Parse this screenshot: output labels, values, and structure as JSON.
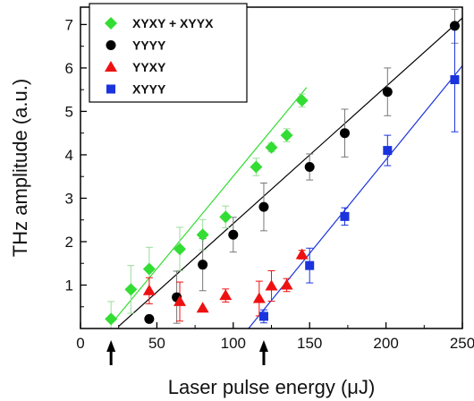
{
  "chart_data": {
    "type": "scatter",
    "title": "",
    "xlabel": "Laser pulse energy (μJ)",
    "ylabel": "THz amplitude (a.u.)",
    "xlim": [
      0,
      250
    ],
    "ylim": [
      0,
      7.4
    ],
    "xticks": [
      0,
      50,
      100,
      150,
      200,
      250
    ],
    "yticks": [
      1,
      2,
      3,
      4,
      5,
      6,
      7
    ],
    "grid": false,
    "legend_position": "top-left",
    "threshold_arrows_x": [
      20,
      120
    ],
    "series": [
      {
        "name": "XYXY + XYYX",
        "marker": "diamond",
        "color": "#33dd33",
        "points": [
          {
            "x": 20,
            "y": 0.22,
            "err": 0.4
          },
          {
            "x": 33,
            "y": 0.9,
            "err": 0.55
          },
          {
            "x": 45,
            "y": 1.37,
            "err": 0.5
          },
          {
            "x": 65,
            "y": 1.83,
            "err": 0.5
          },
          {
            "x": 80,
            "y": 2.16,
            "err": 0.35
          },
          {
            "x": 95,
            "y": 2.57,
            "err": 0.25
          },
          {
            "x": 115,
            "y": 3.72,
            "err": 0.2
          },
          {
            "x": 125,
            "y": 4.17,
            "err": 0.1
          },
          {
            "x": 135,
            "y": 4.45,
            "err": 0.15
          },
          {
            "x": 145,
            "y": 5.25,
            "err": 0.15
          }
        ],
        "fit": {
          "x": [
            20,
            148
          ],
          "y": [
            0.1,
            5.55
          ]
        }
      },
      {
        "name": "YYYY",
        "marker": "circle",
        "color": "#000000",
        "points": [
          {
            "x": 45,
            "y": 0.22,
            "err": 0
          },
          {
            "x": 63,
            "y": 0.72,
            "err": 0.6
          },
          {
            "x": 80,
            "y": 1.47,
            "err": 0.6
          },
          {
            "x": 100,
            "y": 2.16,
            "err": 0.4
          },
          {
            "x": 120,
            "y": 2.8,
            "err": 0.55
          },
          {
            "x": 150,
            "y": 3.72,
            "err": 0.3
          },
          {
            "x": 173,
            "y": 4.5,
            "err": 0.55
          },
          {
            "x": 201,
            "y": 5.45,
            "err": 0.55
          },
          {
            "x": 245,
            "y": 6.97,
            "err": 0.4
          }
        ],
        "fit": {
          "x": [
            25,
            250
          ],
          "y": [
            0.05,
            7.15
          ]
        }
      },
      {
        "name": "YYXY",
        "marker": "triangle",
        "color": "#ee1111",
        "points": [
          {
            "x": 45,
            "y": 0.87,
            "err": 0.3
          },
          {
            "x": 65,
            "y": 0.62,
            "err": 0.45
          },
          {
            "x": 80,
            "y": 0.47,
            "err": 0
          },
          {
            "x": 95,
            "y": 0.76,
            "err": 0.15
          },
          {
            "x": 117,
            "y": 0.69,
            "err": 0.4
          },
          {
            "x": 125,
            "y": 0.98,
            "err": 0.35
          },
          {
            "x": 135,
            "y": 1.0,
            "err": 0.15
          },
          {
            "x": 145,
            "y": 1.7,
            "err": 0.1
          }
        ],
        "fit": null
      },
      {
        "name": "XYYY",
        "marker": "square",
        "color": "#1a33dd",
        "points": [
          {
            "x": 120,
            "y": 0.28,
            "err": 0.15
          },
          {
            "x": 150,
            "y": 1.45,
            "err": 0.4
          },
          {
            "x": 173,
            "y": 2.58,
            "err": 0.2
          },
          {
            "x": 201,
            "y": 4.1,
            "err": 0.35
          },
          {
            "x": 245,
            "y": 5.73,
            "err": 1.2
          }
        ],
        "fit": {
          "x": [
            110,
            250
          ],
          "y": [
            0.0,
            6.05
          ]
        }
      }
    ]
  }
}
